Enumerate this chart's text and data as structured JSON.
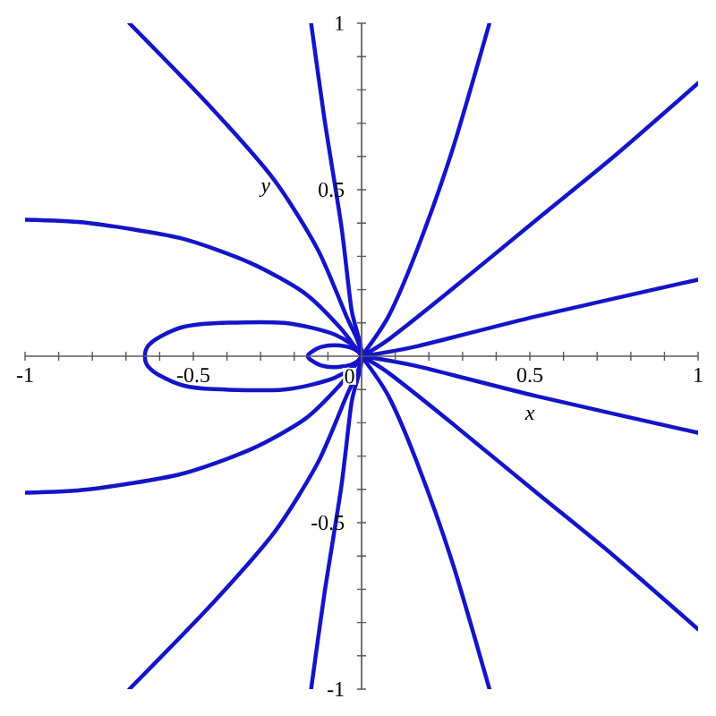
{
  "chart_data": {
    "type": "line",
    "xlabel": "x",
    "ylabel": "y",
    "xlim": [
      -1,
      1
    ],
    "ylim": [
      -1,
      1
    ],
    "xticks": [
      -1,
      {
        "value": -0.9,
        "label": null
      },
      {
        "value": -0.8,
        "label": null
      },
      {
        "value": -0.7,
        "label": null
      },
      {
        "value": -0.6,
        "label": null
      },
      -0.5,
      {
        "value": -0.4,
        "label": null
      },
      {
        "value": -0.3,
        "label": null
      },
      {
        "value": -0.2,
        "label": null
      },
      {
        "value": -0.1,
        "label": null
      },
      0,
      {
        "value": 0.1,
        "label": null
      },
      {
        "value": 0.2,
        "label": null
      },
      {
        "value": 0.3,
        "label": null
      },
      {
        "value": 0.4,
        "label": null
      },
      0.5,
      {
        "value": 0.6,
        "label": null
      },
      {
        "value": 0.7,
        "label": null
      },
      {
        "value": 0.8,
        "label": null
      },
      {
        "value": 0.9,
        "label": null
      },
      1
    ],
    "yticks": [
      -1,
      {
        "value": -0.9,
        "label": null
      },
      {
        "value": -0.8,
        "label": null
      },
      {
        "value": -0.7,
        "label": null
      },
      {
        "value": -0.6,
        "label": null
      },
      -0.5,
      {
        "value": -0.4,
        "label": null
      },
      {
        "value": -0.3,
        "label": null
      },
      {
        "value": -0.2,
        "label": null
      },
      {
        "value": -0.1,
        "label": null
      },
      {
        "value": 0.1,
        "label": null
      },
      {
        "value": 0.2,
        "label": null
      },
      {
        "value": 0.3,
        "label": null
      },
      {
        "value": 0.4,
        "label": null
      },
      0.5,
      {
        "value": 0.6,
        "label": null
      },
      {
        "value": 0.7,
        "label": null
      },
      {
        "value": 0.8,
        "label": null
      },
      {
        "value": 0.9,
        "label": null
      },
      1
    ],
    "series": [
      {
        "color": "#1414c8",
        "x": [
          -0.69,
          -0.45,
          -0.26,
          -0.13,
          -0.045,
          -0.015,
          0,
          -0.03,
          -0.08,
          -0.12,
          -0.15,
          -0.16,
          -0.15,
          -0.12,
          -0.08,
          -0.03,
          0,
          -0.015,
          -0.045,
          -0.13,
          -0.26,
          -0.45,
          -0.69
        ],
        "values": [
          -1,
          -0.75,
          -0.53,
          -0.32,
          -0.12,
          -0.055,
          0,
          0.025,
          0.033,
          0.028,
          0.012,
          0,
          -0.012,
          -0.028,
          -0.033,
          -0.025,
          0,
          0.055,
          0.12,
          0.32,
          0.53,
          0.75,
          1
        ]
      },
      {
        "color": "#1414c8",
        "x": [
          -0.15,
          -0.11,
          -0.06,
          -0.03,
          0,
          -0.08,
          -0.23,
          -0.44,
          -0.53,
          -0.6,
          -0.635,
          -0.644,
          -0.635,
          -0.6,
          -0.53,
          -0.44,
          -0.23,
          -0.08,
          0,
          -0.03,
          -0.06,
          -0.11,
          -0.15
        ],
        "values": [
          -1,
          -0.71,
          -0.39,
          -0.14,
          0,
          0.065,
          0.1,
          0.099,
          0.088,
          0.058,
          0.03,
          0,
          -0.03,
          -0.058,
          -0.088,
          -0.099,
          -0.1,
          -0.065,
          0,
          0.14,
          0.39,
          0.71,
          1
        ]
      },
      {
        "color": "#1414c8",
        "x": [
          0.38,
          0.27,
          0.165,
          0.08,
          0
        ],
        "values": [
          1,
          0.62,
          0.32,
          0.12,
          0
        ]
      },
      {
        "color": "#1414c8",
        "x": [
          1,
          0.75,
          0.52,
          0.255,
          0.08,
          0
        ],
        "values": [
          0.82,
          0.6,
          0.41,
          0.19,
          0.05,
          0
        ]
      },
      {
        "color": "#1414c8",
        "x": [
          1,
          0.52,
          0.165,
          0
        ],
        "values": [
          0.23,
          0.12,
          0.03,
          0
        ]
      },
      {
        "color": "#1414c8",
        "x": [
          -1,
          -0.81,
          -0.54,
          -0.33,
          -0.17,
          -0.064,
          0
        ],
        "values": [
          0.41,
          0.4,
          0.355,
          0.28,
          0.19,
          0.086,
          0
        ]
      },
      {
        "color": "#1414c8",
        "x": [
          0.38,
          0.27,
          0.165,
          0.08,
          0
        ],
        "values": [
          -1,
          -0.62,
          -0.32,
          -0.12,
          0
        ]
      },
      {
        "color": "#1414c8",
        "x": [
          1,
          0.75,
          0.52,
          0.255,
          0.08,
          0
        ],
        "values": [
          -0.82,
          -0.6,
          -0.41,
          -0.19,
          -0.05,
          0
        ]
      },
      {
        "color": "#1414c8",
        "x": [
          1,
          0.52,
          0.165,
          0
        ],
        "values": [
          -0.23,
          -0.12,
          -0.03,
          0
        ]
      },
      {
        "color": "#1414c8",
        "x": [
          -1,
          -0.81,
          -0.54,
          -0.33,
          -0.17,
          -0.064,
          0
        ],
        "values": [
          -0.41,
          -0.4,
          -0.355,
          -0.28,
          -0.19,
          -0.086,
          0
        ]
      }
    ]
  }
}
